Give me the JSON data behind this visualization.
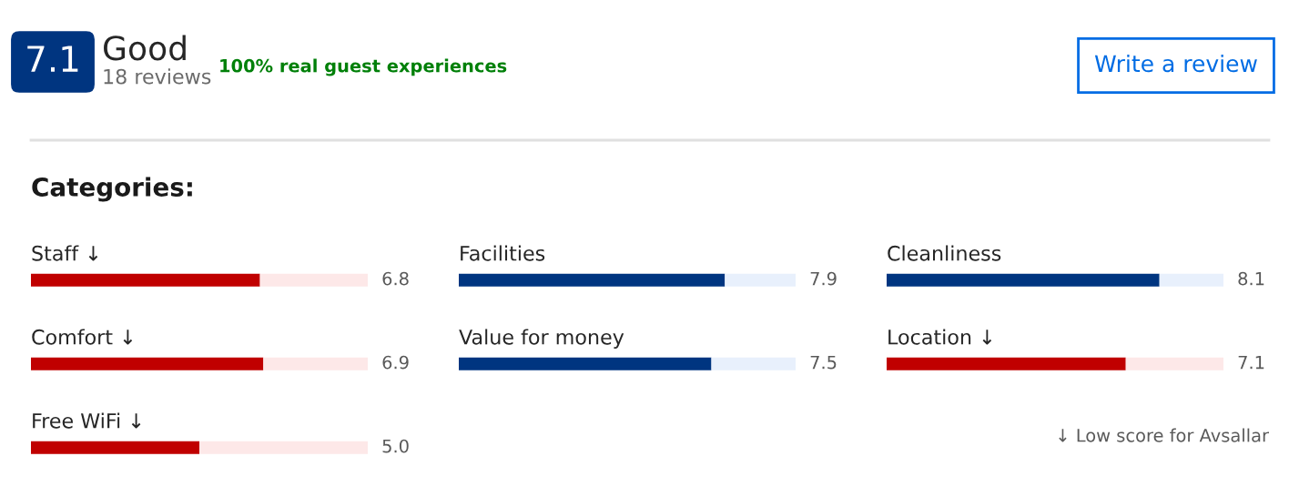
{
  "chart_data": [
    {
      "type": "other",
      "annotations": [
        "7.1",
        "Good",
        "18 reviews",
        "100% real guest experiences",
        "Write a review",
        "Categories:",
        "↓ Low score for Avsallar"
      ]
    },
    {
      "type": "bar",
      "orientation": "horizontal",
      "stacked": true,
      "categories": [
        "Staff ↓",
        "Comfort ↓",
        "Free WiFi ↓"
      ],
      "xlim": [
        0,
        10
      ],
      "tick_labels": "y",
      "series": [
        {
          "values": [
            6.8,
            6.9,
            5.0
          ],
          "value_labels": [
            "6.8",
            "6.9",
            "5.0"
          ],
          "colors": [
            "#c00000",
            "#c00000",
            "#c00000"
          ]
        },
        {
          "values": [
            3.2,
            3.1,
            5.0
          ],
          "colors": [
            "#fde8e8",
            "#fde8e8",
            "#fde8e8"
          ]
        }
      ]
    },
    {
      "type": "bar",
      "orientation": "horizontal",
      "stacked": true,
      "categories": [
        "Facilities",
        "Value for money"
      ],
      "xlim": [
        0,
        10
      ],
      "tick_labels": "y",
      "series": [
        {
          "values": [
            7.9,
            7.5
          ],
          "value_labels": [
            "7.9",
            "7.5"
          ],
          "colors": [
            "#003580",
            "#003580"
          ]
        },
        {
          "values": [
            2.1,
            2.5
          ],
          "colors": [
            "#e8f0fc",
            "#e8f0fc"
          ]
        }
      ]
    },
    {
      "type": "bar",
      "orientation": "horizontal",
      "stacked": true,
      "categories": [
        "Cleanliness",
        "Location ↓"
      ],
      "xlim": [
        0,
        10
      ],
      "tick_labels": "y",
      "series": [
        {
          "values": [
            8.1,
            7.1
          ],
          "value_labels": [
            "8.1",
            "7.1"
          ],
          "colors": [
            "#003580",
            "#c00000"
          ]
        },
        {
          "values": [
            1.9,
            2.9
          ],
          "colors": [
            "#e8f0fc",
            "#fde8e8"
          ]
        }
      ]
    }
  ]
}
